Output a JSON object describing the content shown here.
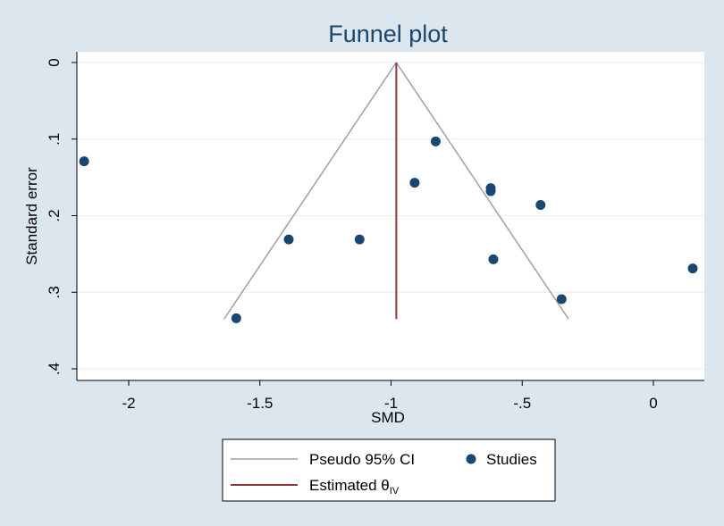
{
  "chart_data": {
    "type": "scatter",
    "title": "Funnel plot",
    "xlabel": "SMD",
    "ylabel": "Standard error",
    "xlim": [
      -2.2,
      0.1
    ],
    "ylim": [
      0,
      0.41
    ],
    "y_reversed": true,
    "x_ticks": [
      -2,
      -1.5,
      -1,
      -0.5,
      0
    ],
    "x_tick_labels": [
      "-2",
      "-1.5",
      "-1",
      "-.5",
      "0"
    ],
    "y_ticks": [
      0,
      0.1,
      0.2,
      0.3,
      0.4
    ],
    "y_tick_labels": [
      "0",
      ".1",
      ".2",
      ".3",
      ".4"
    ],
    "grid": true,
    "estimate": -0.98,
    "funnel_max_se": 0.335,
    "series": [
      {
        "name": "Studies",
        "color": "#1a476f",
        "points": [
          {
            "x": -2.17,
            "y": 0.129
          },
          {
            "x": -1.59,
            "y": 0.334
          },
          {
            "x": -1.39,
            "y": 0.231
          },
          {
            "x": -1.12,
            "y": 0.231
          },
          {
            "x": -0.91,
            "y": 0.157
          },
          {
            "x": -0.83,
            "y": 0.103
          },
          {
            "x": -0.62,
            "y": 0.164
          },
          {
            "x": -0.62,
            "y": 0.168
          },
          {
            "x": -0.61,
            "y": 0.257
          },
          {
            "x": -0.43,
            "y": 0.186
          },
          {
            "x": -0.35,
            "y": 0.309
          },
          {
            "x": 0.15,
            "y": 0.269
          }
        ]
      }
    ],
    "lines": [
      {
        "name": "Pseudo 95% CI",
        "color": "#a0a0a0"
      },
      {
        "name": "Estimated θ",
        "subscript": "IV",
        "color": "#90353b"
      }
    ],
    "legend_position": "bottom"
  }
}
